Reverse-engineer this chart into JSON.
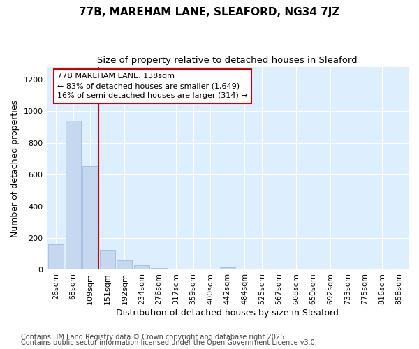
{
  "title1": "77B, MAREHAM LANE, SLEAFORD, NG34 7JZ",
  "title2": "Size of property relative to detached houses in Sleaford",
  "xlabel": "Distribution of detached houses by size in Sleaford",
  "ylabel": "Number of detached properties",
  "footer1": "Contains HM Land Registry data © Crown copyright and database right 2025.",
  "footer2": "Contains public sector information licensed under the Open Government Licence v3.0.",
  "categories": [
    "26sqm",
    "68sqm",
    "109sqm",
    "151sqm",
    "192sqm",
    "234sqm",
    "276sqm",
    "317sqm",
    "359sqm",
    "400sqm",
    "442sqm",
    "484sqm",
    "525sqm",
    "567sqm",
    "608sqm",
    "650sqm",
    "692sqm",
    "733sqm",
    "775sqm",
    "816sqm",
    "858sqm"
  ],
  "values": [
    160,
    940,
    655,
    125,
    58,
    28,
    10,
    0,
    0,
    0,
    15,
    0,
    0,
    0,
    0,
    0,
    0,
    0,
    0,
    0,
    0
  ],
  "bar_color": "#c5d8f0",
  "bar_edge_color": "#a0bede",
  "red_line_x": 2.5,
  "red_line_color": "#cc0000",
  "annotation_line1": "77B MAREHAM LANE: 138sqm",
  "annotation_line2": "← 83% of detached houses are smaller (1,649)",
  "annotation_line3": "16% of semi-detached houses are larger (314) →",
  "annotation_box_color": "#ffffff",
  "annotation_box_edge_color": "#cc0000",
  "ylim": [
    0,
    1280
  ],
  "yticks": [
    0,
    200,
    400,
    600,
    800,
    1000,
    1200
  ],
  "fig_bg_color": "#ffffff",
  "plot_bg_color": "#ddeeff",
  "title_fontsize": 11,
  "subtitle_fontsize": 9.5,
  "axis_label_fontsize": 9,
  "tick_fontsize": 8,
  "footer_fontsize": 7
}
